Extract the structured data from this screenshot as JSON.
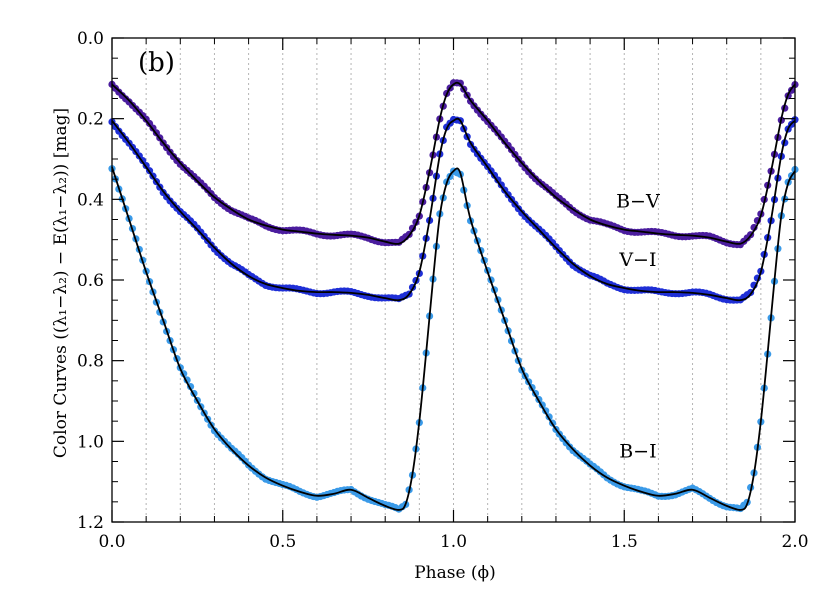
{
  "chart_data": {
    "type": "scatter",
    "panel_label": "(b)",
    "xlabel": "Phase (ϕ)",
    "ylabel": "Color Curves ((λ₁−λ₂) − E(λ₁−λ₂)) [mag]",
    "xlim": [
      0.0,
      2.0
    ],
    "ylim": [
      1.2,
      0.0
    ],
    "y_inverted": true,
    "x_ticks": [
      "0.0",
      "0.5",
      "1.0",
      "1.5",
      "2.0"
    ],
    "y_ticks": [
      "0.0",
      "0.2",
      "0.4",
      "0.6",
      "0.8",
      "1.0",
      "1.2"
    ],
    "vertical_dotted_gridlines_every": 0.1,
    "model_curve_color": "#000000",
    "series": [
      {
        "name": "B−V",
        "color": "#4b1d9e",
        "model_x": [
          0.0,
          0.05,
          0.1,
          0.15,
          0.2,
          0.25,
          0.3,
          0.35,
          0.4,
          0.45,
          0.5,
          0.55,
          0.6,
          0.65,
          0.7,
          0.75,
          0.8,
          0.84,
          0.87,
          0.9,
          0.93,
          0.96,
          0.98,
          1.0,
          1.02,
          1.05,
          1.1,
          1.15,
          1.2,
          1.25,
          1.3,
          1.35,
          1.4,
          1.45,
          1.5,
          1.55,
          1.6,
          1.65,
          1.7,
          1.75,
          1.8,
          1.84,
          1.87,
          1.9,
          1.93,
          1.96,
          1.98,
          2.0
        ],
        "model_y": [
          0.115,
          0.155,
          0.205,
          0.26,
          0.31,
          0.355,
          0.395,
          0.425,
          0.45,
          0.465,
          0.475,
          0.48,
          0.485,
          0.488,
          0.49,
          0.495,
          0.505,
          0.51,
          0.49,
          0.44,
          0.33,
          0.2,
          0.14,
          0.115,
          0.115,
          0.155,
          0.205,
          0.26,
          0.31,
          0.355,
          0.395,
          0.425,
          0.45,
          0.465,
          0.475,
          0.48,
          0.485,
          0.488,
          0.49,
          0.495,
          0.505,
          0.51,
          0.49,
          0.44,
          0.33,
          0.2,
          0.14,
          0.115
        ],
        "label_at": [
          1.54,
          0.42
        ]
      },
      {
        "name": "V−I",
        "color": "#1f2fd6",
        "model_x": [
          0.0,
          0.05,
          0.1,
          0.15,
          0.2,
          0.25,
          0.3,
          0.35,
          0.4,
          0.45,
          0.5,
          0.55,
          0.6,
          0.65,
          0.7,
          0.75,
          0.8,
          0.84,
          0.87,
          0.9,
          0.93,
          0.96,
          0.98,
          1.0,
          1.02,
          1.05,
          1.1,
          1.15,
          1.2,
          1.25,
          1.3,
          1.35,
          1.4,
          1.45,
          1.5,
          1.55,
          1.6,
          1.65,
          1.7,
          1.75,
          1.8,
          1.84,
          1.87,
          1.9,
          1.93,
          1.96,
          1.98,
          2.0
        ],
        "model_y": [
          0.205,
          0.26,
          0.32,
          0.38,
          0.43,
          0.475,
          0.52,
          0.56,
          0.59,
          0.61,
          0.62,
          0.627,
          0.63,
          0.63,
          0.632,
          0.637,
          0.645,
          0.65,
          0.635,
          0.58,
          0.45,
          0.29,
          0.225,
          0.205,
          0.205,
          0.26,
          0.32,
          0.38,
          0.43,
          0.475,
          0.52,
          0.56,
          0.59,
          0.61,
          0.62,
          0.627,
          0.63,
          0.63,
          0.632,
          0.637,
          0.645,
          0.65,
          0.635,
          0.58,
          0.45,
          0.29,
          0.225,
          0.205
        ],
        "label_at": [
          1.54,
          0.565
        ]
      },
      {
        "name": "B−I",
        "color": "#3a9ae8",
        "model_x": [
          0.0,
          0.05,
          0.1,
          0.15,
          0.2,
          0.25,
          0.3,
          0.35,
          0.4,
          0.45,
          0.5,
          0.55,
          0.6,
          0.65,
          0.7,
          0.75,
          0.8,
          0.84,
          0.86,
          0.88,
          0.9,
          0.92,
          0.94,
          0.96,
          0.98,
          1.0,
          1.02,
          1.05,
          1.1,
          1.15,
          1.2,
          1.25,
          1.3,
          1.35,
          1.4,
          1.45,
          1.5,
          1.55,
          1.6,
          1.65,
          1.7,
          1.75,
          1.8,
          1.84,
          1.86,
          1.88,
          1.9,
          1.92,
          1.94,
          1.96,
          1.98,
          2.0
        ],
        "model_y": [
          0.32,
          0.45,
          0.58,
          0.7,
          0.82,
          0.9,
          0.97,
          1.02,
          1.06,
          1.09,
          1.11,
          1.125,
          1.135,
          1.13,
          1.12,
          1.14,
          1.16,
          1.17,
          1.155,
          1.08,
          0.95,
          0.78,
          0.6,
          0.44,
          0.36,
          0.33,
          0.335,
          0.45,
          0.58,
          0.7,
          0.82,
          0.9,
          0.97,
          1.02,
          1.06,
          1.09,
          1.11,
          1.125,
          1.135,
          1.13,
          1.12,
          1.14,
          1.16,
          1.17,
          1.155,
          1.08,
          0.95,
          0.78,
          0.6,
          0.44,
          0.36,
          0.33
        ],
        "label_at": [
          1.54,
          1.04
        ]
      }
    ]
  }
}
